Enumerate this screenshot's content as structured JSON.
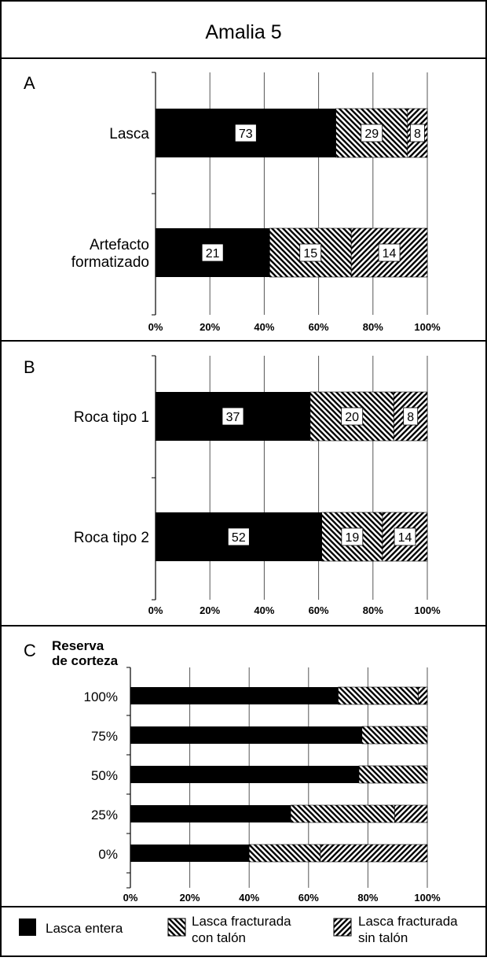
{
  "title": "Amalia 5",
  "patterns": {
    "entera": "solid-black",
    "con_talon": "backslash-hatch",
    "sin_talon": "forwardslash-hatch"
  },
  "legend": [
    {
      "key": "entera",
      "label": "Lasca entera"
    },
    {
      "key": "con_talon",
      "label": "Lasca fracturada con talón"
    },
    {
      "key": "sin_talon",
      "label": "Lasca fracturada sin talón"
    }
  ],
  "chart_data": [
    {
      "panel": "A",
      "type": "bar",
      "orientation": "horizontal",
      "stacked": "percent",
      "xlim": [
        0,
        100
      ],
      "xticks": [
        "0%",
        "20%",
        "40%",
        "60%",
        "80%",
        "100%"
      ],
      "grid": true,
      "categories": [
        "Lasca",
        "Artefacto formatizado"
      ],
      "series": [
        {
          "name": "Lasca entera",
          "key": "entera",
          "values": [
            73,
            21
          ]
        },
        {
          "name": "Lasca fracturada con talón",
          "key": "con_talon",
          "values": [
            29,
            15
          ]
        },
        {
          "name": "Lasca fracturada sin talón",
          "key": "sin_talon",
          "values": [
            8,
            14
          ]
        }
      ]
    },
    {
      "panel": "B",
      "type": "bar",
      "orientation": "horizontal",
      "stacked": "percent",
      "xlim": [
        0,
        100
      ],
      "xticks": [
        "0%",
        "20%",
        "40%",
        "60%",
        "80%",
        "100%"
      ],
      "grid": true,
      "categories": [
        "Roca tipo 1",
        "Roca tipo 2"
      ],
      "series": [
        {
          "name": "Lasca entera",
          "key": "entera",
          "values": [
            37,
            52
          ]
        },
        {
          "name": "Lasca fracturada con talón",
          "key": "con_talon",
          "values": [
            20,
            19
          ]
        },
        {
          "name": "Lasca fracturada sin talón",
          "key": "sin_talon",
          "values": [
            8,
            14
          ]
        }
      ]
    },
    {
      "panel": "C",
      "type": "bar",
      "orientation": "horizontal",
      "stacked": "percent",
      "ylabel": "Reserva de corteza",
      "xlim": [
        0,
        100
      ],
      "xticks": [
        "0%",
        "20%",
        "40%",
        "60%",
        "80%",
        "100%"
      ],
      "grid": true,
      "categories": [
        "100%",
        "75%",
        "50%",
        "25%",
        "0%"
      ],
      "series": [
        {
          "name": "Lasca entera",
          "key": "entera",
          "values": [
            70,
            78,
            77,
            54,
            40
          ]
        },
        {
          "name": "Lasca fracturada con talón",
          "key": "con_talon",
          "values": [
            27,
            22,
            23,
            35,
            24
          ]
        },
        {
          "name": "Lasca fracturada sin talón",
          "key": "sin_talon",
          "values": [
            3,
            0,
            0,
            11,
            36
          ]
        }
      ]
    }
  ]
}
